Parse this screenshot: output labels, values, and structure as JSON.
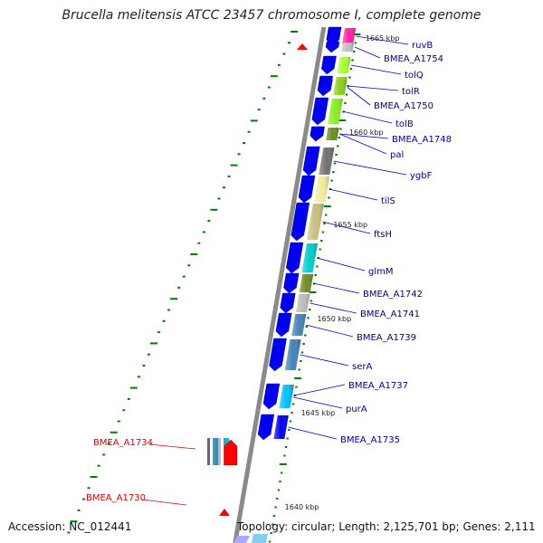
{
  "title": "Brucella melitensis ATCC 23457 chromosome I, complete genome",
  "footer": {
    "accession": "Accession: NC_012441",
    "topology": "Topology: circular; Length: 2,125,701 bp; Genes: 2,111"
  },
  "colors": {
    "backbone": "#8a8a8a",
    "forward_gene": "#0000ee",
    "label_blue": "#00008b",
    "label_red": "#e00000",
    "tick_green": "#008000"
  },
  "scale_ticks": [
    "1665 kbp",
    "1660 kbp",
    "1655 kbp",
    "1650 kbp",
    "1645 kbp",
    "1640 kbp"
  ],
  "genes": [
    {
      "name": "ruvB",
      "strand": "reverse",
      "color": "#ff1fa6"
    },
    {
      "name": "BMEA_A1754",
      "strand": "reverse",
      "color": "#c0c0c0"
    },
    {
      "name": "tolQ",
      "strand": "reverse",
      "color": "#aaff33"
    },
    {
      "name": "tolR",
      "strand": "reverse",
      "color": "#8fdf00"
    },
    {
      "name": "BMEA_A1750",
      "strand": "reverse",
      "color": "#88cc22"
    },
    {
      "name": "tolB",
      "strand": "reverse",
      "color": "#88ee22"
    },
    {
      "name": "BMEA_A1748",
      "strand": "reverse",
      "color": "#6b8e23"
    },
    {
      "name": "pal",
      "strand": "reverse",
      "color": "#6b8e23"
    },
    {
      "name": "ygbF",
      "strand": "reverse",
      "color": "#707070"
    },
    {
      "name": "tilS",
      "strand": "reverse",
      "color": "#eeee99"
    },
    {
      "name": "ftsH",
      "strand": "reverse",
      "color": "#c8c080"
    },
    {
      "name": "glmM",
      "strand": "reverse",
      "color": "#00cccc"
    },
    {
      "name": "BMEA_A1742",
      "strand": "reverse",
      "color": "#6b8e23"
    },
    {
      "name": "BMEA_A1741",
      "strand": "reverse",
      "color": "#bbbbbb"
    },
    {
      "name": "BMEA_A1739",
      "strand": "reverse",
      "color": "#4682b4"
    },
    {
      "name": "serA",
      "strand": "reverse",
      "color": "#4682b4"
    },
    {
      "name": "BMEA_A1737",
      "strand": "reverse",
      "color": "#20b2e0"
    },
    {
      "name": "purA",
      "strand": "reverse",
      "color": "#00bfff"
    },
    {
      "name": "BMEA_A1735",
      "strand": "reverse",
      "color": "#0000ee"
    },
    {
      "name": "BMEA_A1734",
      "strand": "forward",
      "color": "#ff0000"
    },
    {
      "name": "BMEA_A1730",
      "strand": "forward",
      "color": "#ff0000"
    }
  ]
}
